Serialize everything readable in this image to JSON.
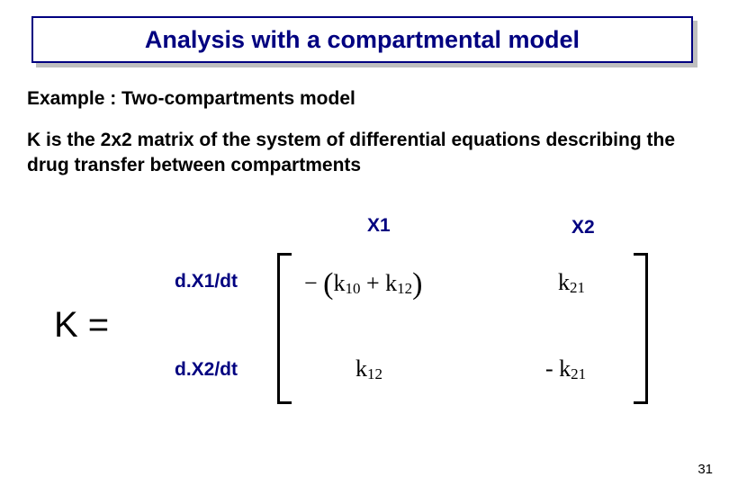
{
  "title": "Analysis with a compartmental model",
  "subtitle": "Example : Two-compartments model",
  "description": "K is the 2x2 matrix of the system of differential equations describing the drug transfer between compartments",
  "column_headers": {
    "x1": "X1",
    "x2": "X2"
  },
  "row_labels": {
    "r1": "d.X1/dt",
    "r2": "d.X2/dt"
  },
  "k_equals": "K =",
  "matrix": {
    "c11_prefix": "− ",
    "c11_open": "(",
    "c11_k10": "k",
    "c11_k10_sub": "10",
    "c11_plus": " + ",
    "c11_k12": "k",
    "c11_k12_sub": "12",
    "c11_close": ")",
    "c12_k": "k",
    "c12_sub": "21",
    "c21_k": "k",
    "c21_sub": "12",
    "c22_prefix": "- ",
    "c22_k": "k",
    "c22_sub": "21"
  },
  "page_number": "31",
  "colors": {
    "accent": "#000080",
    "text": "#000000",
    "shadow": "#bfbfbf",
    "bg": "#ffffff"
  },
  "fonts": {
    "ui_family": "Arial",
    "math_family": "Times New Roman",
    "title_size_pt": 20,
    "body_size_pt": 16,
    "k_size_pt": 30,
    "math_size_pt": 20
  }
}
